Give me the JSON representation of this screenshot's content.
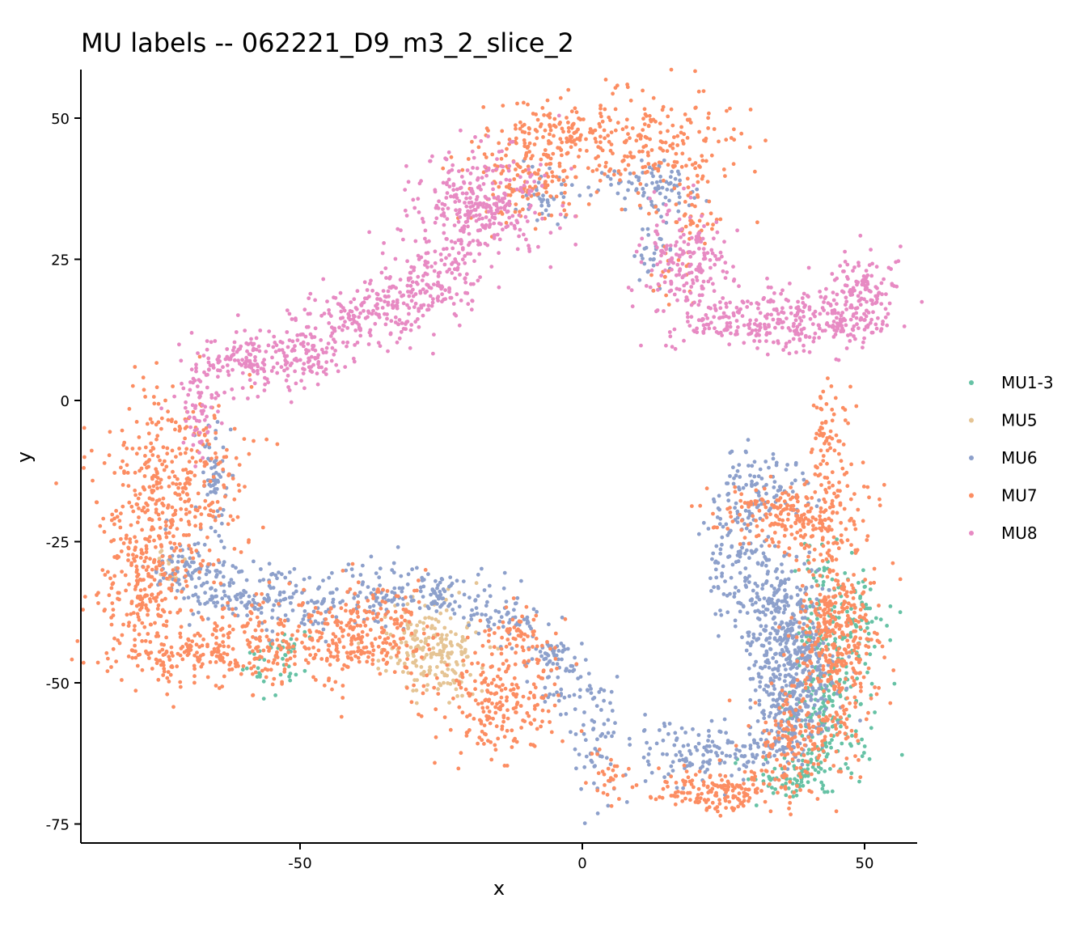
{
  "chart_data": {
    "type": "scatter",
    "title": "MU labels -- 062221_D9_m3_2_slice_2",
    "xlabel": "x",
    "ylabel": "y",
    "xlim": [
      -89,
      59
    ],
    "ylim": [
      -78,
      59
    ],
    "x_ticks": [
      -50,
      0,
      50
    ],
    "x_tick_labels": [
      "-50",
      "0",
      "50"
    ],
    "y_ticks": [
      50,
      25,
      0,
      -25,
      -50,
      -75
    ],
    "y_tick_labels": [
      "50",
      "25",
      "0",
      "-25",
      "-50",
      "-75"
    ],
    "grid": false,
    "legend_position": "right",
    "series": [
      {
        "name": "MU1-3",
        "color": "#66C2A5",
        "clusters": [
          [
            -55,
            -47,
            3,
            3,
            30
          ],
          [
            -52,
            -43,
            2,
            2,
            15
          ],
          [
            43,
            -42,
            3,
            8,
            140
          ],
          [
            49,
            -40,
            2,
            5,
            60
          ],
          [
            44,
            -58,
            4,
            5,
            110
          ],
          [
            38,
            -67,
            3,
            2,
            60
          ],
          [
            32,
            -68,
            2,
            2,
            15
          ]
        ]
      },
      {
        "name": "MU5",
        "color": "#E5C494",
        "clusters": [
          [
            -28,
            -43,
            4,
            4,
            120
          ],
          [
            -25,
            -46,
            4,
            3,
            90
          ],
          [
            -73,
            -30,
            1.5,
            2,
            15
          ]
        ]
      },
      {
        "name": "MU6",
        "color": "#8DA0CB",
        "clusters": [
          [
            -65,
            -15,
            1.5,
            6,
            60
          ],
          [
            -70,
            -30,
            4,
            3,
            90
          ],
          [
            -60,
            -35,
            5,
            3,
            100
          ],
          [
            -48,
            -36,
            4,
            3,
            70
          ],
          [
            -36,
            -34,
            4,
            3,
            70
          ],
          [
            -25,
            -34,
            5,
            2,
            70
          ],
          [
            -15,
            -38,
            5,
            2,
            60
          ],
          [
            -5,
            -45,
            3,
            2,
            40
          ],
          [
            -2,
            -50,
            3,
            3,
            40
          ],
          [
            2,
            -60,
            2,
            6,
            60
          ],
          [
            -6,
            36,
            3,
            3,
            40
          ],
          [
            8,
            39,
            3,
            2,
            30
          ],
          [
            15,
            37,
            3,
            2,
            50
          ],
          [
            13,
            26,
            1.5,
            3,
            30
          ],
          [
            32,
            -15,
            4,
            3,
            90
          ],
          [
            27,
            -25,
            3,
            6,
            110
          ],
          [
            35,
            -38,
            4,
            5,
            240
          ],
          [
            38,
            -48,
            4,
            5,
            240
          ],
          [
            36,
            -57,
            3,
            4,
            120
          ],
          [
            20,
            -62,
            6,
            3,
            110
          ],
          [
            32,
            -62,
            4,
            2,
            50
          ]
        ]
      },
      {
        "name": "MU7",
        "color": "#FC8D62",
        "clusters": [
          [
            -72,
            -15,
            6,
            8,
            360
          ],
          [
            -78,
            -32,
            4,
            7,
            220
          ],
          [
            -68,
            -45,
            8,
            3,
            200
          ],
          [
            -55,
            -43,
            6,
            4,
            120
          ],
          [
            -42,
            -42,
            4,
            4,
            140
          ],
          [
            -35,
            -40,
            4,
            4,
            100
          ],
          [
            -15,
            -53,
            6,
            5,
            220
          ],
          [
            -12,
            -42,
            3,
            3,
            60
          ],
          [
            5,
            -67,
            1.5,
            3,
            25
          ],
          [
            -10,
            40,
            5,
            5,
            140
          ],
          [
            -5,
            47,
            5,
            3,
            110
          ],
          [
            12,
            45,
            8,
            5,
            220
          ],
          [
            20,
            33,
            2,
            3,
            40
          ],
          [
            16,
            22,
            2,
            3,
            20
          ],
          [
            43,
            -8,
            2,
            6,
            90
          ],
          [
            42,
            -22,
            5,
            4,
            150
          ],
          [
            32,
            -20,
            4,
            3,
            90
          ],
          [
            45,
            -45,
            4,
            9,
            300
          ],
          [
            37,
            -60,
            4,
            4,
            130
          ],
          [
            26,
            -69,
            7,
            2,
            180
          ],
          [
            45,
            -40,
            3,
            4,
            90
          ]
        ]
      },
      {
        "name": "MU8",
        "color": "#E78AC3",
        "clusters": [
          [
            -68,
            0,
            2,
            5,
            70
          ],
          [
            -62,
            7,
            4,
            2,
            80
          ],
          [
            -52,
            8,
            5,
            3,
            150
          ],
          [
            -38,
            15,
            6,
            3,
            170
          ],
          [
            -28,
            21,
            5,
            3,
            130
          ],
          [
            -22,
            33,
            5,
            5,
            180
          ],
          [
            -15,
            35,
            5,
            5,
            150
          ],
          [
            18,
            25,
            4,
            5,
            180
          ],
          [
            22,
            14,
            4,
            2,
            60
          ],
          [
            35,
            14,
            6,
            3,
            180
          ],
          [
            47,
            14,
            4,
            2,
            100
          ],
          [
            50,
            20,
            3,
            3,
            100
          ]
        ]
      }
    ]
  }
}
